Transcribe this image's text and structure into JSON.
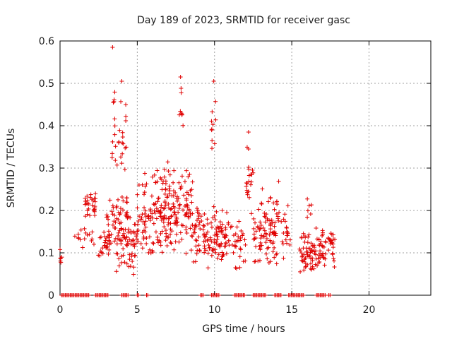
{
  "chart_data": {
    "type": "scatter",
    "title": "Day 189 of 2023, SRMTID for receiver gasc",
    "xlabel": "GPS time / hours",
    "ylabel": "SRMTID / TECUs",
    "xlim": [
      0,
      24
    ],
    "ylim": [
      0,
      0.6
    ],
    "x_ticks": [
      0,
      5,
      10,
      15,
      20
    ],
    "y_ticks": [
      0,
      0.1,
      0.2,
      0.3,
      0.4,
      0.5,
      0.6
    ],
    "x_tick_labels": [
      "0",
      "5",
      "10",
      "15",
      "20"
    ],
    "y_tick_labels": [
      "0",
      "0.1",
      "0.2",
      "0.3",
      "0.4",
      "0.5",
      "0.6"
    ],
    "grid": true,
    "marker": "+",
    "color": "#e00000",
    "series": [
      {
        "name": "SRMTID",
        "clusters": [
          {
            "x_range": [
              0.0,
              0.2
            ],
            "y_range": [
              0.07,
              0.11
            ],
            "n": 6
          },
          {
            "x_range": [
              0.9,
              1.4
            ],
            "y_range": [
              0.12,
              0.17
            ],
            "n": 6
          },
          {
            "x_range": [
              1.4,
              2.2
            ],
            "y_range": [
              0.1,
              0.18
            ],
            "n": 10
          },
          {
            "x_range": [
              1.6,
              2.3
            ],
            "y_range": [
              0.17,
              0.25
            ],
            "n": 30
          },
          {
            "x_range": [
              2.4,
              3.2
            ],
            "y_range": [
              0.08,
              0.16
            ],
            "n": 20
          },
          {
            "x_range": [
              3.0,
              4.6
            ],
            "y_range": [
              0.05,
              0.26
            ],
            "n": 90
          },
          {
            "x_range": [
              3.3,
              4.3
            ],
            "y_range": [
              0.26,
              0.5
            ],
            "n": 30
          },
          {
            "x_range": [
              4.3,
              5.0
            ],
            "y_range": [
              0.04,
              0.24
            ],
            "n": 35
          },
          {
            "x_range": [
              5.0,
              6.5
            ],
            "y_range": [
              0.08,
              0.3
            ],
            "n": 80
          },
          {
            "x_range": [
              6.5,
              8.6
            ],
            "y_range": [
              0.08,
              0.32
            ],
            "n": 150
          },
          {
            "x_range": [
              7.7,
              8.0
            ],
            "y_range": [
              0.37,
              0.51
            ],
            "n": 8
          },
          {
            "x_range": [
              8.6,
              9.5
            ],
            "y_range": [
              0.06,
              0.24
            ],
            "n": 45
          },
          {
            "x_range": [
              9.5,
              11.0
            ],
            "y_range": [
              0.05,
              0.22
            ],
            "n": 80
          },
          {
            "x_range": [
              9.8,
              10.1
            ],
            "y_range": [
              0.28,
              0.5
            ],
            "n": 10
          },
          {
            "x_range": [
              11.0,
              12.0
            ],
            "y_range": [
              0.05,
              0.2
            ],
            "n": 30
          },
          {
            "x_range": [
              12.0,
              12.5
            ],
            "y_range": [
              0.15,
              0.38
            ],
            "n": 20
          },
          {
            "x_range": [
              12.5,
              13.0
            ],
            "y_range": [
              0.06,
              0.22
            ],
            "n": 25
          },
          {
            "x_range": [
              13.0,
              14.2
            ],
            "y_range": [
              0.06,
              0.27
            ],
            "n": 70
          },
          {
            "x_range": [
              14.2,
              14.9
            ],
            "y_range": [
              0.08,
              0.22
            ],
            "n": 20
          },
          {
            "x_range": [
              15.5,
              16.6
            ],
            "y_range": [
              0.04,
              0.16
            ],
            "n": 60
          },
          {
            "x_range": [
              16.0,
              16.3
            ],
            "y_range": [
              0.17,
              0.24
            ],
            "n": 6
          },
          {
            "x_range": [
              16.6,
              17.8
            ],
            "y_range": [
              0.06,
              0.17
            ],
            "n": 55
          }
        ],
        "outliers": [
          {
            "x": 3.4,
            "y": 0.585
          },
          {
            "x": 7.8,
            "y": 0.515
          },
          {
            "x": 9.95,
            "y": 0.505
          },
          {
            "x": 4.0,
            "y": 0.505
          },
          {
            "x": 12.2,
            "y": 0.385
          },
          {
            "x": 12.2,
            "y": 0.345
          }
        ]
      },
      {
        "name": "zero baseline",
        "y": 0,
        "x_segments": [
          [
            0.1,
            1.9
          ],
          [
            2.3,
            3.1
          ],
          [
            4.0,
            4.4
          ],
          [
            5.0,
            5.1
          ],
          [
            5.6,
            5.7
          ],
          [
            9.1,
            9.3
          ],
          [
            9.8,
            10.3
          ],
          [
            11.3,
            12.0
          ],
          [
            12.5,
            13.3
          ],
          [
            13.9,
            14.3
          ],
          [
            14.8,
            15.8
          ],
          [
            16.6,
            17.2
          ],
          [
            17.4,
            17.5
          ]
        ]
      }
    ]
  }
}
